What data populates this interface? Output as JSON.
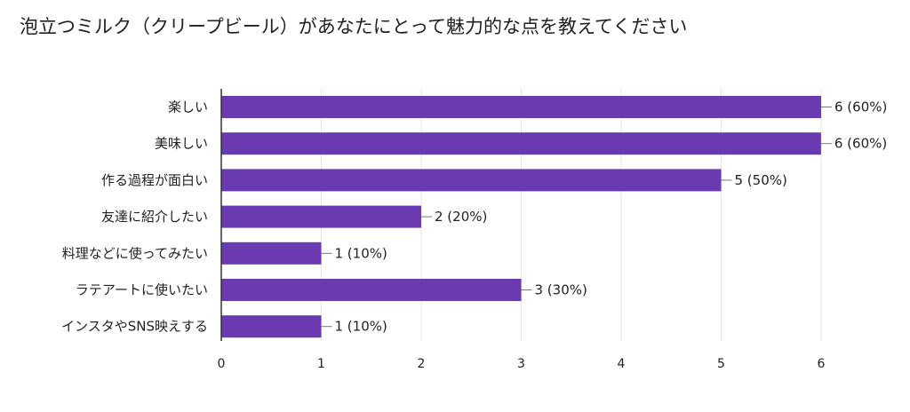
{
  "chart_data": {
    "type": "bar",
    "orientation": "horizontal",
    "title": "泡立つミルク（クリープビール）があなたにとって魅力的な点を教えてください",
    "categories": [
      "楽しい",
      "美味しい",
      "作る過程が面白い",
      "友達に紹介したい",
      "料理などに使ってみたい",
      "ラテアートに使いたい",
      "インスタやSNS映えする"
    ],
    "values": [
      6,
      5.999,
      5,
      2,
      1,
      3,
      1
    ],
    "data_labels": [
      "6 (60%)",
      "6 (60%)",
      "5 (50%)",
      "2 (20%)",
      "1 (10%)",
      "3 (30%)",
      "1 (10%)"
    ],
    "xlim": [
      0,
      6
    ],
    "xticks": [
      "0",
      "1",
      "2",
      "3",
      "4",
      "5",
      "6"
    ],
    "grid": true,
    "legend": "none",
    "colors": {
      "bar": "#6a3bb0",
      "grid": "#e6e6e6",
      "axis": "#333333"
    }
  }
}
